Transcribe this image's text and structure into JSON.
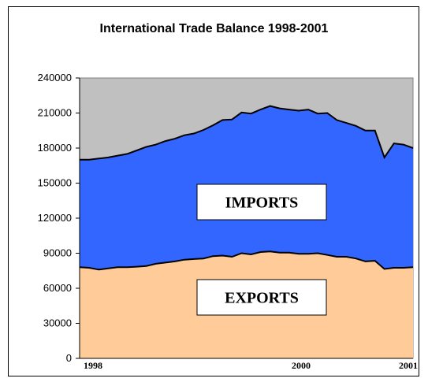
{
  "chart_data": {
    "type": "area",
    "title": "International Trade Balance 1998-2001",
    "xlabel": "",
    "ylabel": "",
    "ylim": [
      0,
      240000
    ],
    "yticks": [
      0,
      30000,
      60000,
      90000,
      120000,
      150000,
      180000,
      210000,
      240000
    ],
    "xtick_labels": [
      "1998",
      "2000",
      "2001"
    ],
    "grid": false,
    "stacked": true,
    "background_color": "#c0c0c0",
    "series": [
      {
        "name": "EXPORTS",
        "color": "#ffcc99",
        "values": [
          78000,
          77500,
          76000,
          77000,
          78000,
          78000,
          78500,
          79000,
          81000,
          82000,
          83000,
          84500,
          85000,
          85500,
          87500,
          88000,
          87000,
          90000,
          89000,
          91000,
          91500,
          90500,
          90500,
          89500,
          89500,
          90000,
          88500,
          87000,
          87000,
          85500,
          83000,
          83500,
          76500,
          77500,
          77500,
          78000
        ]
      },
      {
        "name": "IMPORTS",
        "color": "#3366ff",
        "values": [
          92000,
          92500,
          95000,
          95000,
          95500,
          97000,
          99500,
          102000,
          102000,
          104000,
          105000,
          106500,
          107500,
          110000,
          112000,
          116000,
          117500,
          120500,
          120500,
          122000,
          124500,
          123500,
          122500,
          122500,
          123500,
          119500,
          121500,
          117000,
          114500,
          113500,
          112000,
          111500,
          95500,
          106500,
          105500,
          102000
        ]
      }
    ]
  }
}
